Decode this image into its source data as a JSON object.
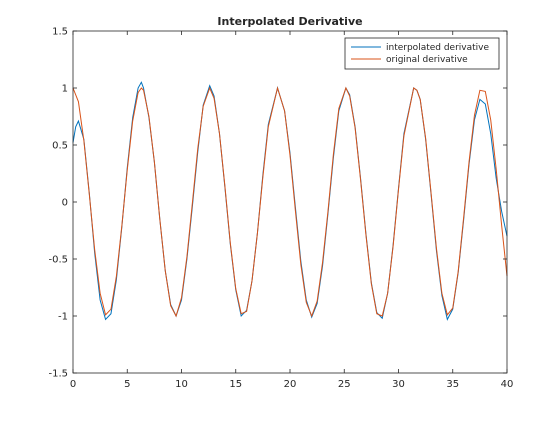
{
  "chart_data": {
    "type": "line",
    "title": "Interpolated Derivative",
    "xlabel": "",
    "ylabel": "",
    "xlim": [
      0,
      40
    ],
    "ylim": [
      -1.5,
      1.5
    ],
    "xticks": [
      0,
      5,
      10,
      15,
      20,
      25,
      30,
      35,
      40
    ],
    "yticks": [
      -1.5,
      -1,
      -0.5,
      0,
      0.5,
      1,
      1.5
    ],
    "xtick_labels": [
      "0",
      "5",
      "10",
      "15",
      "20",
      "25",
      "30",
      "35",
      "40"
    ],
    "ytick_labels": [
      "-1.5",
      "-1",
      "-0.5",
      "0",
      "0.5",
      "1",
      "1.5"
    ],
    "grid": false,
    "legend_position": "top-right",
    "series": [
      {
        "name": "interpolated derivative",
        "color": "#0072bd",
        "x": [
          0,
          0.25,
          0.5,
          1,
          1.5,
          2,
          2.5,
          3,
          3.5,
          4,
          4.5,
          5,
          5.5,
          6,
          6.3,
          6.5,
          7,
          7.5,
          8,
          8.5,
          9,
          9.5,
          10,
          10.5,
          11,
          11.5,
          12,
          12.6,
          13,
          13.5,
          14,
          14.5,
          15,
          15.5,
          16,
          16.5,
          17,
          17.5,
          18,
          18.85,
          19.5,
          20,
          20.5,
          21,
          21.5,
          22,
          22.5,
          23,
          23.5,
          24,
          24.5,
          25.15,
          25.5,
          26,
          26.5,
          27,
          27.5,
          28,
          28.5,
          29,
          29.5,
          30,
          30.5,
          31.4,
          31.7,
          32,
          32.5,
          33,
          33.5,
          34,
          34.5,
          35,
          35.5,
          36,
          36.5,
          37,
          37.5,
          38,
          38.5,
          39,
          39.5,
          40
        ],
        "y": [
          0.52,
          0.66,
          0.71,
          0.55,
          0.08,
          -0.45,
          -0.86,
          -1.03,
          -0.98,
          -0.68,
          -0.22,
          0.3,
          0.74,
          1.0,
          1.05,
          1.0,
          0.74,
          0.35,
          -0.15,
          -0.6,
          -0.9,
          -1.0,
          -0.86,
          -0.5,
          -0.04,
          0.44,
          0.85,
          1.02,
          0.93,
          0.6,
          0.13,
          -0.37,
          -0.77,
          -1.0,
          -0.95,
          -0.69,
          -0.27,
          0.24,
          0.68,
          1.0,
          0.8,
          0.43,
          -0.05,
          -0.52,
          -0.86,
          -1.01,
          -0.89,
          -0.56,
          -0.1,
          0.39,
          0.8,
          1.0,
          0.94,
          0.66,
          0.21,
          -0.28,
          -0.71,
          -0.97,
          -1.02,
          -0.8,
          -0.38,
          0.12,
          0.6,
          1.0,
          0.98,
          0.9,
          0.55,
          0.07,
          -0.43,
          -0.82,
          -1.03,
          -0.94,
          -0.62,
          -0.16,
          0.33,
          0.72,
          0.9,
          0.86,
          0.6,
          0.21,
          -0.08,
          -0.3
        ]
      },
      {
        "name": "original derivative",
        "color": "#d95319",
        "x": [
          0,
          0.5,
          1,
          1.5,
          2,
          2.5,
          3,
          3.5,
          4,
          4.5,
          5,
          5.5,
          6,
          6.3,
          6.5,
          7,
          7.5,
          8,
          8.5,
          9,
          9.5,
          10,
          10.5,
          11,
          11.5,
          12,
          12.6,
          13,
          13.5,
          14,
          14.5,
          15,
          15.5,
          16,
          16.5,
          17,
          17.5,
          18,
          18.85,
          19.5,
          20,
          20.5,
          21,
          21.5,
          22,
          22.5,
          23,
          23.5,
          24,
          24.5,
          25.15,
          25.5,
          26,
          26.5,
          27,
          27.5,
          28,
          28.5,
          29,
          29.5,
          30,
          30.5,
          31.4,
          31.7,
          32,
          32.5,
          33,
          33.5,
          34,
          34.5,
          35,
          35.5,
          36,
          36.5,
          37,
          37.5,
          38,
          38.5,
          39,
          39.5,
          40
        ],
        "y": [
          1.0,
          0.88,
          0.54,
          0.07,
          -0.42,
          -0.8,
          -0.99,
          -0.94,
          -0.65,
          -0.21,
          0.28,
          0.71,
          0.96,
          1.0,
          0.98,
          0.75,
          0.35,
          -0.15,
          -0.6,
          -0.91,
          -1.0,
          -0.84,
          -0.48,
          -0.01,
          0.47,
          0.84,
          1.0,
          0.91,
          0.6,
          0.14,
          -0.36,
          -0.76,
          -0.98,
          -0.96,
          -0.69,
          -0.27,
          0.22,
          0.66,
          1.0,
          0.8,
          0.41,
          -0.08,
          -0.55,
          -0.88,
          -1.0,
          -0.87,
          -0.53,
          -0.08,
          0.42,
          0.82,
          1.0,
          0.93,
          0.65,
          0.2,
          -0.29,
          -0.72,
          -0.98,
          -1.0,
          -0.8,
          -0.39,
          0.11,
          0.58,
          1.0,
          0.98,
          0.9,
          0.56,
          0.08,
          -0.41,
          -0.8,
          -0.99,
          -0.93,
          -0.61,
          -0.14,
          0.35,
          0.76,
          0.98,
          0.97,
          0.72,
          0.29,
          -0.2,
          -0.65
        ]
      }
    ]
  }
}
